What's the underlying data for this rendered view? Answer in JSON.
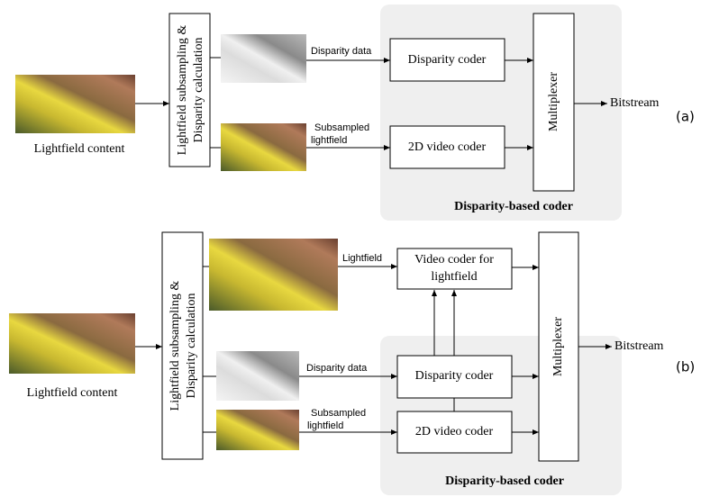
{
  "diagram_a": {
    "source_label": "Lightfield content",
    "preprocess": [
      "Lightfield subsampling &",
      "Disparity calculation"
    ],
    "disparity_label": "Disparity data",
    "subsampled_label": [
      "Subsampled",
      "lightfield"
    ],
    "disparity_coder": "Disparity coder",
    "video_coder": "2D video coder",
    "multiplexer": "Multiplexer",
    "output": "Bitstream",
    "group_label": "Disparity-based coder",
    "tag": "(a)"
  },
  "diagram_b": {
    "source_label": "Lightfield content",
    "preprocess": [
      "Lightfield subsampling &",
      "Disparity calculation"
    ],
    "lightfield_label": "Lightfield",
    "lightfield_coder": [
      "Video coder for",
      "lightfield"
    ],
    "disparity_label": "Disparity data",
    "subsampled_label": [
      "Subsampled",
      "lightfield"
    ],
    "disparity_coder": "Disparity coder",
    "video_coder": "2D video coder",
    "multiplexer": "Multiplexer",
    "output": "Bitstream",
    "group_label": "Disparity-based coder",
    "tag": "(b)"
  }
}
